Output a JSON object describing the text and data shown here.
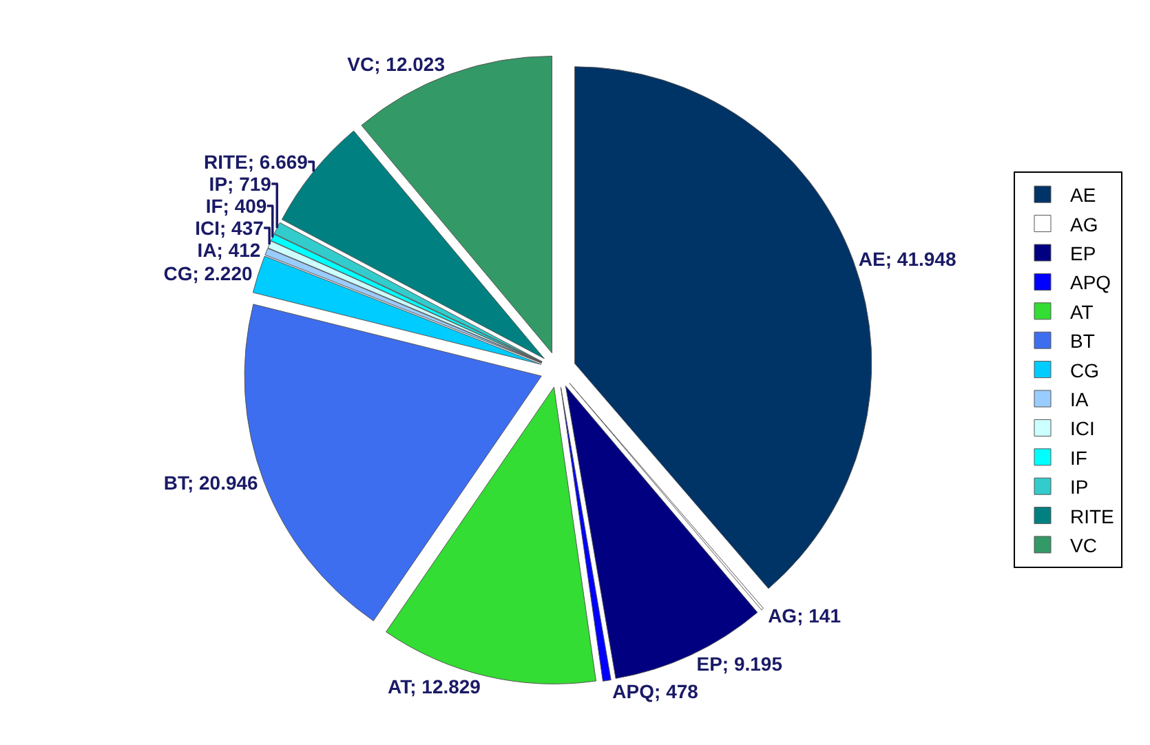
{
  "chart_data": {
    "type": "pie",
    "categories": [
      "AE",
      "AG",
      "EP",
      "APQ",
      "AT",
      "BT",
      "CG",
      "IA",
      "ICI",
      "IF",
      "IP",
      "RITE",
      "VC"
    ],
    "values": [
      41948,
      141,
      9195,
      478,
      12829,
      20946,
      2220,
      412,
      437,
      409,
      719,
      6669,
      12023
    ],
    "value_labels": [
      "AE; 41.948",
      "AG; 141",
      "EP; 9.195",
      "APQ; 478",
      "AT; 12.829",
      "BT; 20.946",
      "CG; 2.220",
      "IA; 412",
      "ICI; 437",
      "IF; 409",
      "IP; 719",
      "RITE; 6.669",
      "VC; 12.023"
    ],
    "colors": [
      "#003366",
      "#ffffff",
      "#000080",
      "#0000ff",
      "#33dd33",
      "#3d6ef0",
      "#00ccff",
      "#99ccff",
      "#ccffff",
      "#00ffff",
      "#33cccc",
      "#008080",
      "#339966"
    ],
    "legend": "right"
  }
}
